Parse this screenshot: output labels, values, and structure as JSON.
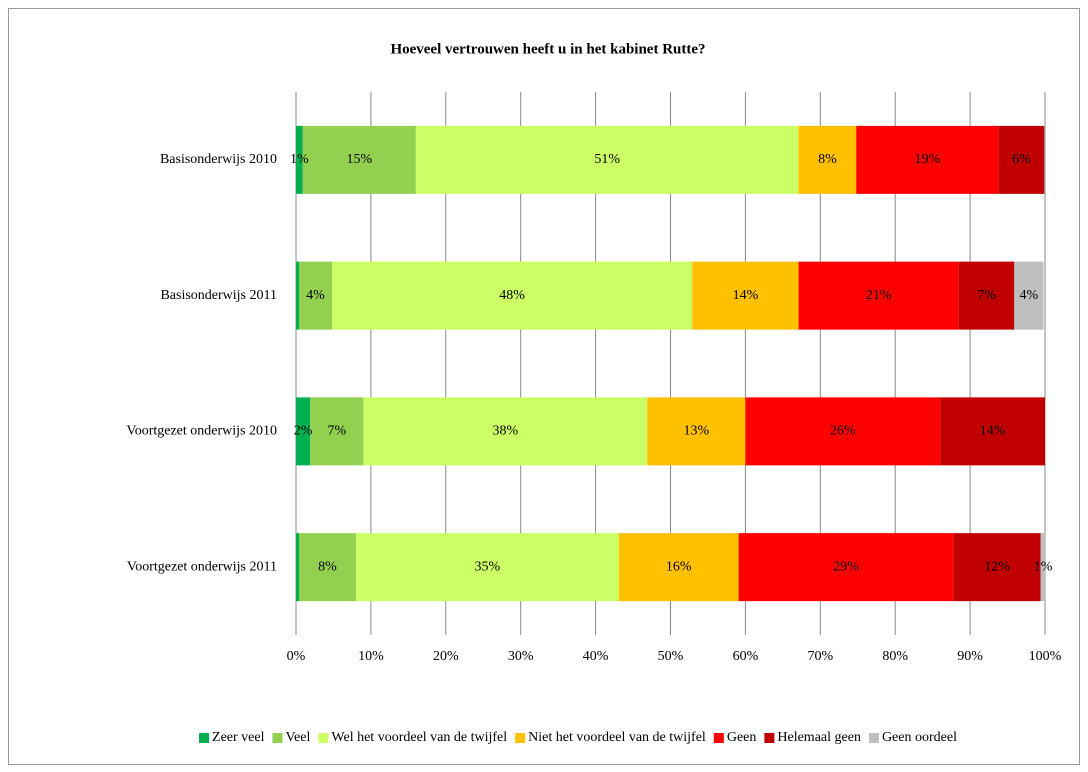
{
  "chart_data": {
    "type": "stacked-bar-horizontal",
    "title": "Hoeveel vertrouwen heeft u in het kabinet Rutte?",
    "categories": [
      "Basisonderwijs 2010",
      "Basisonderwijs 2011",
      "Voortgezet onderwijs 2010",
      "Voortgezet onderwijs 2011"
    ],
    "series": [
      {
        "name": "Zeer veel",
        "color": "#00b050",
        "values": [
          0.9,
          0.4,
          1.9,
          0.4
        ],
        "value_labels": [
          "1%",
          null,
          "2%",
          null
        ]
      },
      {
        "name": "Veel",
        "color": "#92d050",
        "values": [
          15.1,
          4.4,
          7.1,
          7.6
        ],
        "value_labels": [
          "15%",
          "4%",
          "7%",
          "8%"
        ]
      },
      {
        "name": "Wel het voordeel van de twijfel",
        "color": "#ccff66",
        "values": [
          51.1,
          48.1,
          37.9,
          35.1
        ],
        "value_labels": [
          "51%",
          "48%",
          "38%",
          "35%"
        ]
      },
      {
        "name": "Niet het voordeel van de twijfel",
        "color": "#ffc000",
        "values": [
          7.7,
          14.2,
          13.1,
          16.0
        ],
        "value_labels": [
          "8%",
          "14%",
          "13%",
          "16%"
        ]
      },
      {
        "name": "Geen",
        "color": "#ff0000",
        "values": [
          19.0,
          21.4,
          26.0,
          28.7
        ],
        "value_labels": [
          "19%",
          "21%",
          "26%",
          "29%"
        ]
      },
      {
        "name": "Helemaal geen",
        "color": "#c00000",
        "values": [
          6.1,
          7.4,
          14.0,
          11.6
        ],
        "value_labels": [
          "6%",
          "7%",
          "14%",
          "12%"
        ]
      },
      {
        "name": "Geen oordeel",
        "color": "#bfbfbf",
        "values": [
          0,
          3.9,
          0,
          0.7
        ],
        "value_labels": [
          null,
          "4%",
          null,
          "1%"
        ]
      }
    ],
    "xlim": [
      0,
      100
    ],
    "xticks": [
      {
        "value": 0,
        "label": "0%"
      },
      {
        "value": 10,
        "label": "10%"
      },
      {
        "value": 20,
        "label": "20%"
      },
      {
        "value": 30,
        "label": "30%"
      },
      {
        "value": 40,
        "label": "40%"
      },
      {
        "value": 50,
        "label": "50%"
      },
      {
        "value": 60,
        "label": "60%"
      },
      {
        "value": 70,
        "label": "70%"
      },
      {
        "value": 80,
        "label": "80%"
      },
      {
        "value": 90,
        "label": "90%"
      },
      {
        "value": 100,
        "label": "100%"
      }
    ],
    "grid": true,
    "legend": "bottom"
  }
}
